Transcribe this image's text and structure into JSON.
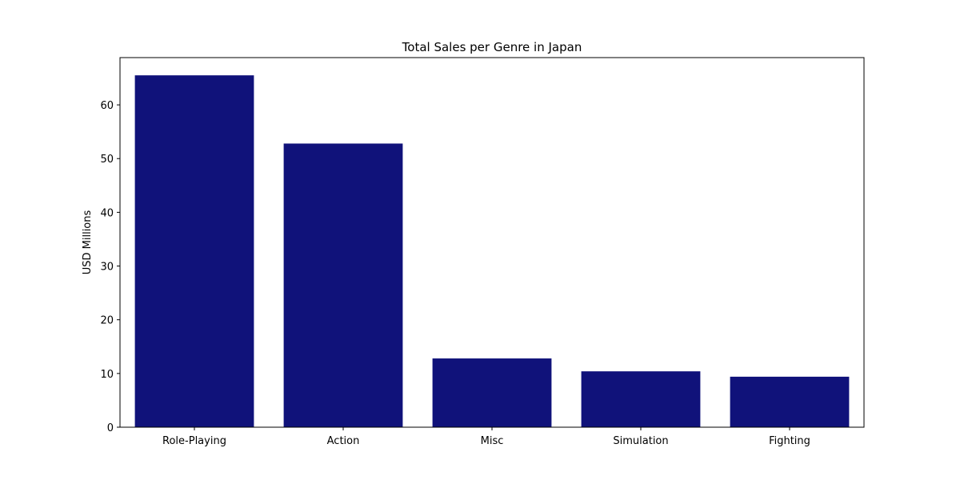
{
  "chart_data": {
    "type": "bar",
    "title": "Total Sales per Genre in Japan",
    "xlabel": "",
    "ylabel": "USD Millions",
    "categories": [
      "Role-Playing",
      "Action",
      "Misc",
      "Simulation",
      "Fighting"
    ],
    "values": [
      65.5,
      52.8,
      12.8,
      10.4,
      9.4
    ],
    "ylim": [
      0,
      68.8
    ],
    "yticks": [
      0,
      10,
      20,
      30,
      40,
      50,
      60
    ],
    "grid": false,
    "legend": "none",
    "bar_color": "#10127a"
  }
}
